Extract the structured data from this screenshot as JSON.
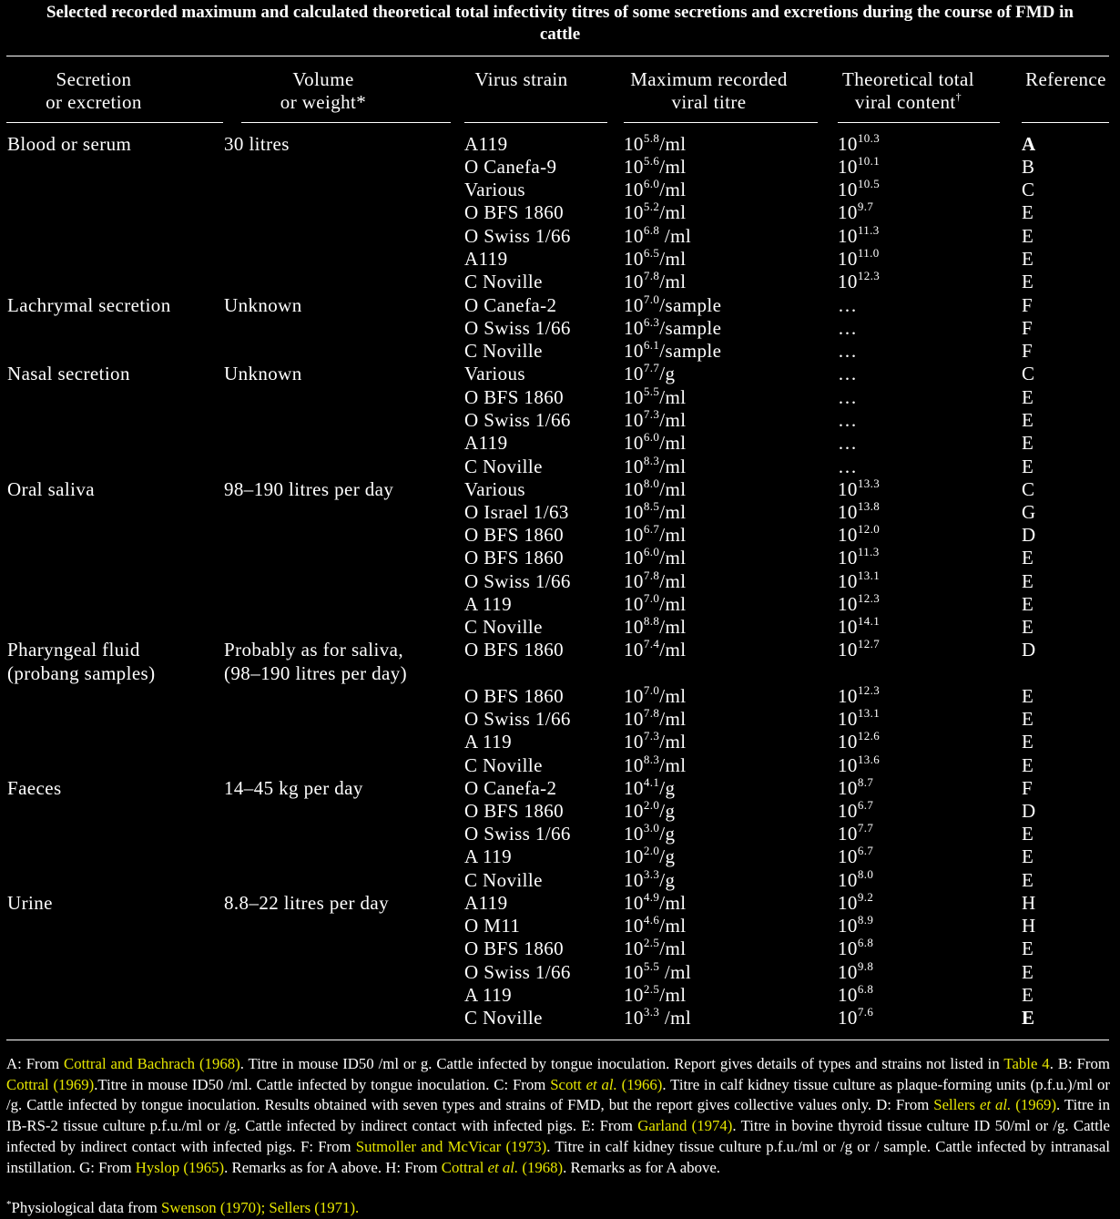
{
  "title": "Selected recorded maximum and calculated theoretical total infectivity titres of some secretions and excretions during the course of FMD in cattle",
  "headers": {
    "secretion": [
      "Secretion",
      "or excretion"
    ],
    "volume": [
      "Volume",
      "or weight*"
    ],
    "strain": [
      "Virus strain"
    ],
    "titre": [
      "Maximum recorded",
      "viral titre"
    ],
    "total": [
      "Theoretical total",
      "viral content"
    ],
    "total_mark": "†",
    "reference": [
      "Reference"
    ]
  },
  "row_y": [
    158,
    183,
    208,
    233,
    259,
    284,
    309,
    335,
    360,
    385,
    410,
    436,
    461,
    486,
    512,
    537,
    562,
    587,
    612,
    638,
    663,
    688,
    713,
    764,
    789,
    814,
    840,
    865,
    890,
    915,
    940,
    966,
    991,
    1016,
    1041,
    1067,
    1092,
    1117
  ],
  "groups": [
    {
      "row": 0,
      "name": [
        "Blood or serum"
      ],
      "volume": [
        "30 litres"
      ]
    },
    {
      "row": 7,
      "name": [
        "Lachrymal secretion"
      ],
      "volume": [
        "Unknown"
      ]
    },
    {
      "row": 10,
      "name": [
        "Nasal secretion"
      ],
      "volume": [
        "Unknown"
      ]
    },
    {
      "row": 15,
      "name": [
        "Oral saliva"
      ],
      "volume": [
        "98–190 litres per day"
      ]
    },
    {
      "row": 22,
      "name": [
        "Pharyngeal fluid",
        "(probang samples)"
      ],
      "volume": [
        "Probably as for saliva,",
        "(98–190 litres per day)"
      ]
    },
    {
      "row": 27,
      "name": [
        "Faeces"
      ],
      "volume": [
        "14–45 kg per day"
      ]
    },
    {
      "row": 32,
      "name": [
        "Urine"
      ],
      "volume": [
        "8.8–22 litres per day"
      ]
    }
  ],
  "rows": [
    {
      "strain": "A119",
      "titre_exp": "5.8",
      "titre_unit": "/ml",
      "total_exp": "10.3",
      "ref": "A",
      "ref_bold": true
    },
    {
      "strain": "O Canefa-9",
      "titre_exp": "5.6",
      "titre_unit": "/ml",
      "total_exp": "10.1",
      "ref": "B"
    },
    {
      "strain": "Various",
      "titre_exp": "6.0",
      "titre_unit": "/ml",
      "total_exp": "10.5",
      "ref": "C"
    },
    {
      "strain": "O BFS 1860",
      "titre_exp": "5.2",
      "titre_unit": "/ml",
      "total_exp": "9.7",
      "ref": "E"
    },
    {
      "strain": "O Swiss 1/66",
      "titre_exp": "6.8",
      "titre_unit": " /ml",
      "total_exp": "11.3",
      "ref": "E"
    },
    {
      "strain": "A119",
      "titre_exp": "6.5",
      "titre_unit": "/ml",
      "total_exp": "11.0",
      "ref": "E"
    },
    {
      "strain": "C Noville",
      "titre_exp": "7.8",
      "titre_unit": "/ml",
      "total_exp": "12.3",
      "ref": "E"
    },
    {
      "strain": "O Canefa-2",
      "titre_exp": "7.0",
      "titre_unit": "/sample",
      "total_text": "…",
      "ref": "F"
    },
    {
      "strain": "O Swiss 1/66",
      "titre_exp": "6.3",
      "titre_unit": "/sample",
      "total_text": "…",
      "ref": "F"
    },
    {
      "strain": "C Noville",
      "titre_exp": "6.1",
      "titre_unit": "/sample",
      "total_text": "…",
      "ref": "F"
    },
    {
      "strain": "Various",
      "titre_exp": "7.7",
      "titre_unit": "/g",
      "total_text": "…",
      "ref": "C"
    },
    {
      "strain": "O BFS 1860",
      "titre_exp": "5.5",
      "titre_unit": "/ml",
      "total_text": "…",
      "ref": "E"
    },
    {
      "strain": "O Swiss 1/66",
      "titre_exp": "7.3",
      "titre_unit": "/ml",
      "total_text": "…",
      "ref": "E"
    },
    {
      "strain": "A119",
      "titre_exp": "6.0",
      "titre_unit": "/ml",
      "total_text": "…",
      "ref": "E"
    },
    {
      "strain": "C Noville",
      "titre_exp": "8.3",
      "titre_unit": "/ml",
      "total_text": "…",
      "ref": "E"
    },
    {
      "strain": "Various",
      "titre_exp": "8.0",
      "titre_unit": "/ml",
      "total_exp": "13.3",
      "ref": "C"
    },
    {
      "strain": "O Israel 1/63",
      "titre_exp": "8.5",
      "titre_unit": "/ml",
      "total_exp": "13.8",
      "ref": "G"
    },
    {
      "strain": "O BFS 1860",
      "titre_exp": "6.7",
      "titre_unit": "/ml",
      "total_exp": "12.0",
      "ref": "D"
    },
    {
      "strain": "O BFS 1860",
      "titre_exp": "6.0",
      "titre_unit": "/ml",
      "total_exp": "11.3",
      "ref": "E"
    },
    {
      "strain": "O Swiss 1/66",
      "titre_exp": "7.8",
      "titre_unit": "/ml",
      "total_exp": "13.1",
      "ref": "E"
    },
    {
      "strain": "A 119",
      "titre_exp": "7.0",
      "titre_unit": "/ml",
      "total_exp": "12.3",
      "ref": "E"
    },
    {
      "strain": "C Noville",
      "titre_exp": "8.8",
      "titre_unit": "/ml",
      "total_exp": "14.1",
      "ref": "E"
    },
    {
      "strain": "O BFS 1860",
      "titre_exp": "7.4",
      "titre_unit": "/ml",
      "total_exp": "12.7",
      "ref": "D"
    },
    {
      "strain": "O BFS 1860",
      "titre_exp": "7.0",
      "titre_unit": "/ml",
      "total_exp": "12.3",
      "ref": "E"
    },
    {
      "strain": "O Swiss 1/66",
      "titre_exp": "7.8",
      "titre_unit": "/ml",
      "total_exp": "13.1",
      "ref": "E"
    },
    {
      "strain": "A 119",
      "titre_exp": "7.3",
      "titre_unit": "/ml",
      "total_exp": "12.6",
      "ref": "E"
    },
    {
      "strain": "C Noville",
      "titre_exp": "8.3",
      "titre_unit": "/ml",
      "total_exp": "13.6",
      "ref": "E"
    },
    {
      "strain": "O Canefa-2",
      "titre_exp": "4.1",
      "titre_unit": "/g",
      "total_exp": "8.7",
      "ref": "F"
    },
    {
      "strain": "O BFS 1860",
      "titre_exp": "2.0",
      "titre_unit": "/g",
      "total_exp": "6.7",
      "ref": "D"
    },
    {
      "strain": "O Swiss 1/66",
      "titre_exp": "3.0",
      "titre_unit": "/g",
      "total_exp": "7.7",
      "ref": "E"
    },
    {
      "strain": "A 119",
      "titre_exp": "2.0",
      "titre_unit": "/g",
      "total_exp": "6.7",
      "ref": "E"
    },
    {
      "strain": "C Noville",
      "titre_exp": "3.3",
      "titre_unit": "/g",
      "total_exp": "8.0",
      "ref": "E"
    },
    {
      "strain": "A119",
      "titre_exp": "4.9",
      "titre_unit": "/ml",
      "total_exp": "9.2",
      "ref": "H"
    },
    {
      "strain": "O M11",
      "titre_exp": "4.6",
      "titre_unit": "/ml",
      "total_exp": "8.9",
      "ref": "H"
    },
    {
      "strain": "O BFS 1860",
      "titre_exp": "2.5",
      "titre_unit": "/ml",
      "total_exp": "6.8",
      "ref": "E"
    },
    {
      "strain": "O Swiss 1/66",
      "titre_exp": "5.5",
      "titre_unit": " /ml",
      "total_exp": "9.8",
      "ref": "E"
    },
    {
      "strain": "A 119",
      "titre_exp": "2.5",
      "titre_unit": "/ml",
      "total_exp": "6.8",
      "ref": "E"
    },
    {
      "strain": "C Noville",
      "titre_exp": "3.3",
      "titre_unit": " /ml",
      "total_exp": "7.6",
      "ref": "E",
      "ref_bold": true
    }
  ],
  "footnote": [
    {
      "t": "A: From "
    },
    {
      "t": "Cottral and Bachrach (1968)",
      "link": true
    },
    {
      "t": ". Titre in mouse ID50 /ml or g. Cattle infected by tongue inoculation. Report gives details of types and strains not listed in "
    },
    {
      "t": "Table 4",
      "link": true
    },
    {
      "t": ". B: From "
    },
    {
      "t": "Cottral (1969)",
      "link": true
    },
    {
      "t": ".Titre in mouse ID50 /ml. Cattle infected by tongue inoculation. C: From "
    },
    {
      "t": "Scott ",
      "link": true
    },
    {
      "t": "et al.",
      "link": true,
      "italic": true
    },
    {
      "t": " (1966)",
      "link": true
    },
    {
      "t": ". Titre in calf kidney tissue culture as plaque-forming units (p.f.u.)/ml or /g. Cattle infected by tongue inoculation. Results obtained with seven types and strains of FMD, but the report gives collective values only. D: From "
    },
    {
      "t": "Sellers ",
      "link": true
    },
    {
      "t": "et al.",
      "link": true,
      "italic": true
    },
    {
      "t": " (1969)",
      "link": true
    },
    {
      "t": ". Titre in IB-RS-2 tissue culture p.f.u./ml or /g. Cattle infected by indirect contact with infected pigs. E: From "
    },
    {
      "t": "Garland (1974)",
      "link": true
    },
    {
      "t": ". Titre in bovine thyroid tissue culture ID 50/ml or /g. Cattle infected by indirect contact with infected pigs. F: From "
    },
    {
      "t": "Sutmoller and McVicar (1973)",
      "link": true
    },
    {
      "t": ". Titre in calf kidney tissue culture p.f.u./ml or /g or / sample. Cattle infected by intranasal instillation. G: From "
    },
    {
      "t": "Hyslop (1965)",
      "link": true
    },
    {
      "t": ". Remarks as for A above. H: From "
    },
    {
      "t": "Cottral ",
      "link": true
    },
    {
      "t": "et al.",
      "link": true,
      "italic": true
    },
    {
      "t": " (1968)",
      "link": true
    },
    {
      "t": ". Remarks as for A above."
    }
  ],
  "note": {
    "mark": "*",
    "parts": [
      {
        "t": "Physiological data from "
      },
      {
        "t": "Swenson (1970); Sellers (1971).",
        "link": true
      }
    ]
  },
  "colors": {
    "background": "#000000",
    "text": "#ffffff",
    "link": "#e6e600"
  }
}
